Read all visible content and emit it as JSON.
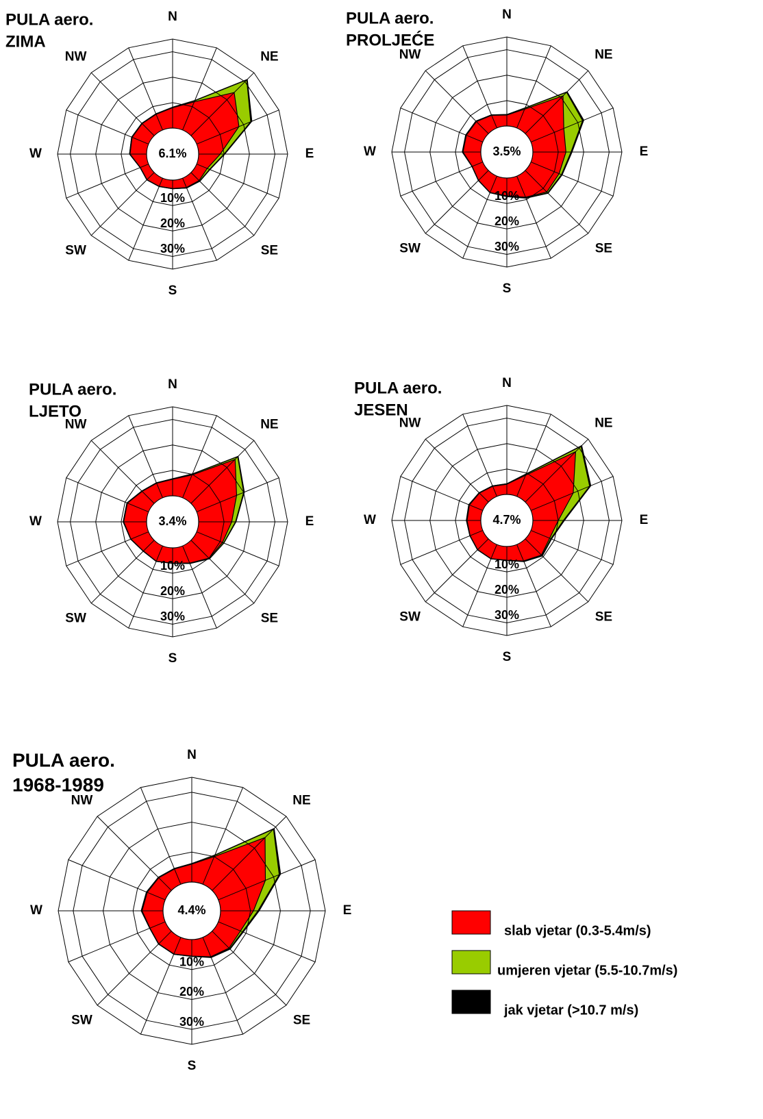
{
  "chart_data": [
    {
      "type": "radar",
      "title": "PULA aero.",
      "subtitle": "ZIMA",
      "categories": [
        "N",
        null,
        "NE",
        null,
        "E",
        null,
        "SE",
        null,
        "S",
        null,
        "SW",
        null,
        "W",
        null,
        "NW",
        null
      ],
      "calm": {
        "value": 6.1,
        "label": "6.1%"
      },
      "rlim": [
        0,
        35
      ],
      "rticks": [
        {
          "value": 10,
          "label": "10%"
        },
        {
          "value": 20,
          "label": "20%"
        },
        {
          "value": 30,
          "label": "30%"
        }
      ],
      "series": [
        {
          "values": [
            8,
            12,
            24,
            18,
            8.5,
            4.5,
            4.5,
            4,
            3.3,
            3.5,
            4,
            3.5,
            6.5,
            7,
            6.7,
            6.7
          ]
        },
        {
          "values": [
            0.2,
            0.5,
            7,
            5,
            1.5,
            1,
            0.3,
            0.2,
            0.1,
            0.1,
            0.1,
            0.1,
            0.2,
            0.2,
            0.2,
            0.2
          ]
        },
        {
          "values": [
            0,
            0.1,
            0.3,
            0.5,
            0.3,
            0.2,
            0.1,
            0,
            0,
            0,
            0,
            0,
            0,
            0,
            0,
            0
          ]
        }
      ]
    },
    {
      "type": "radar",
      "title": "PULA aero.",
      "subtitle": "PROLJEĆE",
      "categories": [
        "N",
        null,
        "NE",
        null,
        "E",
        null,
        "SE",
        null,
        "S",
        null,
        "SW",
        null,
        "W",
        null,
        "NW",
        null
      ],
      "calm": {
        "value": 3.5,
        "label": "3.5%"
      },
      "rlim": [
        0,
        35
      ],
      "rticks": [
        {
          "value": 10,
          "label": "10%"
        },
        {
          "value": 20,
          "label": "20%"
        },
        {
          "value": 30,
          "label": "30%"
        }
      ],
      "series": [
        {
          "values": [
            4.3,
            8,
            21,
            14,
            13,
            12,
            12,
            9,
            7,
            7,
            5.5,
            4.5,
            7,
            7,
            6.7,
            5.4
          ]
        },
        {
          "values": [
            0.2,
            0.5,
            2,
            8,
            2,
            1,
            0.5,
            0.3,
            0.2,
            0.1,
            0.1,
            0.1,
            0.2,
            0.2,
            0.2,
            0.2
          ]
        },
        {
          "values": [
            0,
            0.1,
            0.3,
            0.5,
            0.4,
            0.3,
            0.2,
            0.1,
            0.1,
            0,
            0,
            0,
            0.1,
            0.1,
            0.1,
            0
          ]
        }
      ]
    },
    {
      "type": "radar",
      "title": "PULA aero.",
      "subtitle": "LJETO",
      "categories": [
        "N",
        null,
        "NE",
        null,
        "E",
        null,
        "SE",
        null,
        "S",
        null,
        "SW",
        null,
        "W",
        null,
        "NW",
        null
      ],
      "calm": {
        "value": 3.4,
        "label": "3.4%"
      },
      "rlim": [
        0,
        35
      ],
      "rticks": [
        {
          "value": 10,
          "label": "10%"
        },
        {
          "value": 20,
          "label": "20%"
        },
        {
          "value": 30,
          "label": "30%"
        }
      ],
      "series": [
        {
          "values": [
            6.5,
            9.7,
            24.5,
            17,
            13,
            11,
            10,
            7.3,
            6,
            6.5,
            6,
            7.5,
            9,
            9,
            6.7,
            6.2
          ]
        },
        {
          "values": [
            0.2,
            0.4,
            1.5,
            3,
            1.5,
            0.5,
            0.3,
            0.2,
            0.1,
            0.1,
            0.1,
            0.1,
            0.2,
            0.2,
            0.2,
            0.2
          ]
        },
        {
          "values": [
            0,
            0.1,
            0.2,
            0.3,
            0.2,
            0.1,
            0,
            0,
            0,
            0,
            0,
            0,
            0,
            0,
            0,
            0
          ]
        }
      ]
    },
    {
      "type": "radar",
      "title": "PULA aero.",
      "subtitle": "JESEN",
      "categories": [
        "N",
        null,
        "NE",
        null,
        "E",
        null,
        "SE",
        null,
        "S",
        null,
        "SW",
        null,
        "W",
        null,
        "NW",
        null
      ],
      "calm": {
        "value": 4.7,
        "label": "4.7%"
      },
      "rlim": [
        0,
        35
      ],
      "rticks": [
        {
          "value": 10,
          "label": "10%"
        },
        {
          "value": 20,
          "label": "20%"
        },
        {
          "value": 30,
          "label": "30%"
        }
      ],
      "series": [
        {
          "values": [
            4,
            9,
            28,
            18,
            10,
            8,
            9,
            7,
            5.4,
            6,
            6,
            5.4,
            5.4,
            5.7,
            5,
            4.3
          ]
        },
        {
          "values": [
            0.2,
            0.5,
            3,
            7,
            2,
            0.5,
            0.3,
            0.2,
            0.1,
            0.1,
            0.1,
            0.1,
            0.2,
            0.2,
            0.2,
            0.2
          ]
        },
        {
          "values": [
            0,
            0.1,
            0.4,
            0.5,
            0.4,
            0.3,
            0.2,
            0.1,
            0,
            0,
            0,
            0,
            0.1,
            0.1,
            0,
            0
          ]
        }
      ]
    },
    {
      "type": "radar",
      "title": "PULA aero.",
      "subtitle": "1968-1989",
      "categories": [
        "N",
        null,
        "NE",
        null,
        "E",
        null,
        "SE",
        null,
        "S",
        null,
        "SW",
        null,
        "W",
        null,
        "NW",
        null
      ],
      "calm": {
        "value": 4.4,
        "label": "4.4%"
      },
      "rlim": [
        0,
        35
      ],
      "rticks": [
        {
          "value": 10,
          "label": "10%"
        },
        {
          "value": 20,
          "label": "20%"
        },
        {
          "value": 30,
          "label": "30%"
        }
      ],
      "series": [
        {
          "values": [
            6,
            10,
            25,
            17,
            11,
            8,
            8,
            7,
            5.5,
            6,
            6,
            5.5,
            7,
            6.5,
            6,
            5.5
          ]
        },
        {
          "values": [
            0.2,
            0.5,
            4,
            5,
            1.5,
            0.7,
            0.3,
            0.2,
            0.1,
            0.1,
            0.1,
            0.1,
            0.2,
            0.2,
            0.2,
            0.2
          ]
        },
        {
          "values": [
            0,
            0.1,
            0.3,
            0.5,
            0.4,
            0.3,
            0.2,
            0.1,
            0,
            0,
            0,
            0,
            0.1,
            0.1,
            0,
            0
          ]
        }
      ]
    }
  ],
  "legend": [
    {
      "name": "slab vjetar (0.3-5.4m/s)",
      "color": "#ff0000"
    },
    {
      "name": "umjeren vjetar (5.5-10.7m/s)",
      "color": "#99cc00"
    },
    {
      "name": "jak vjetar (>10.7 m/s)",
      "color": "#000000"
    }
  ]
}
